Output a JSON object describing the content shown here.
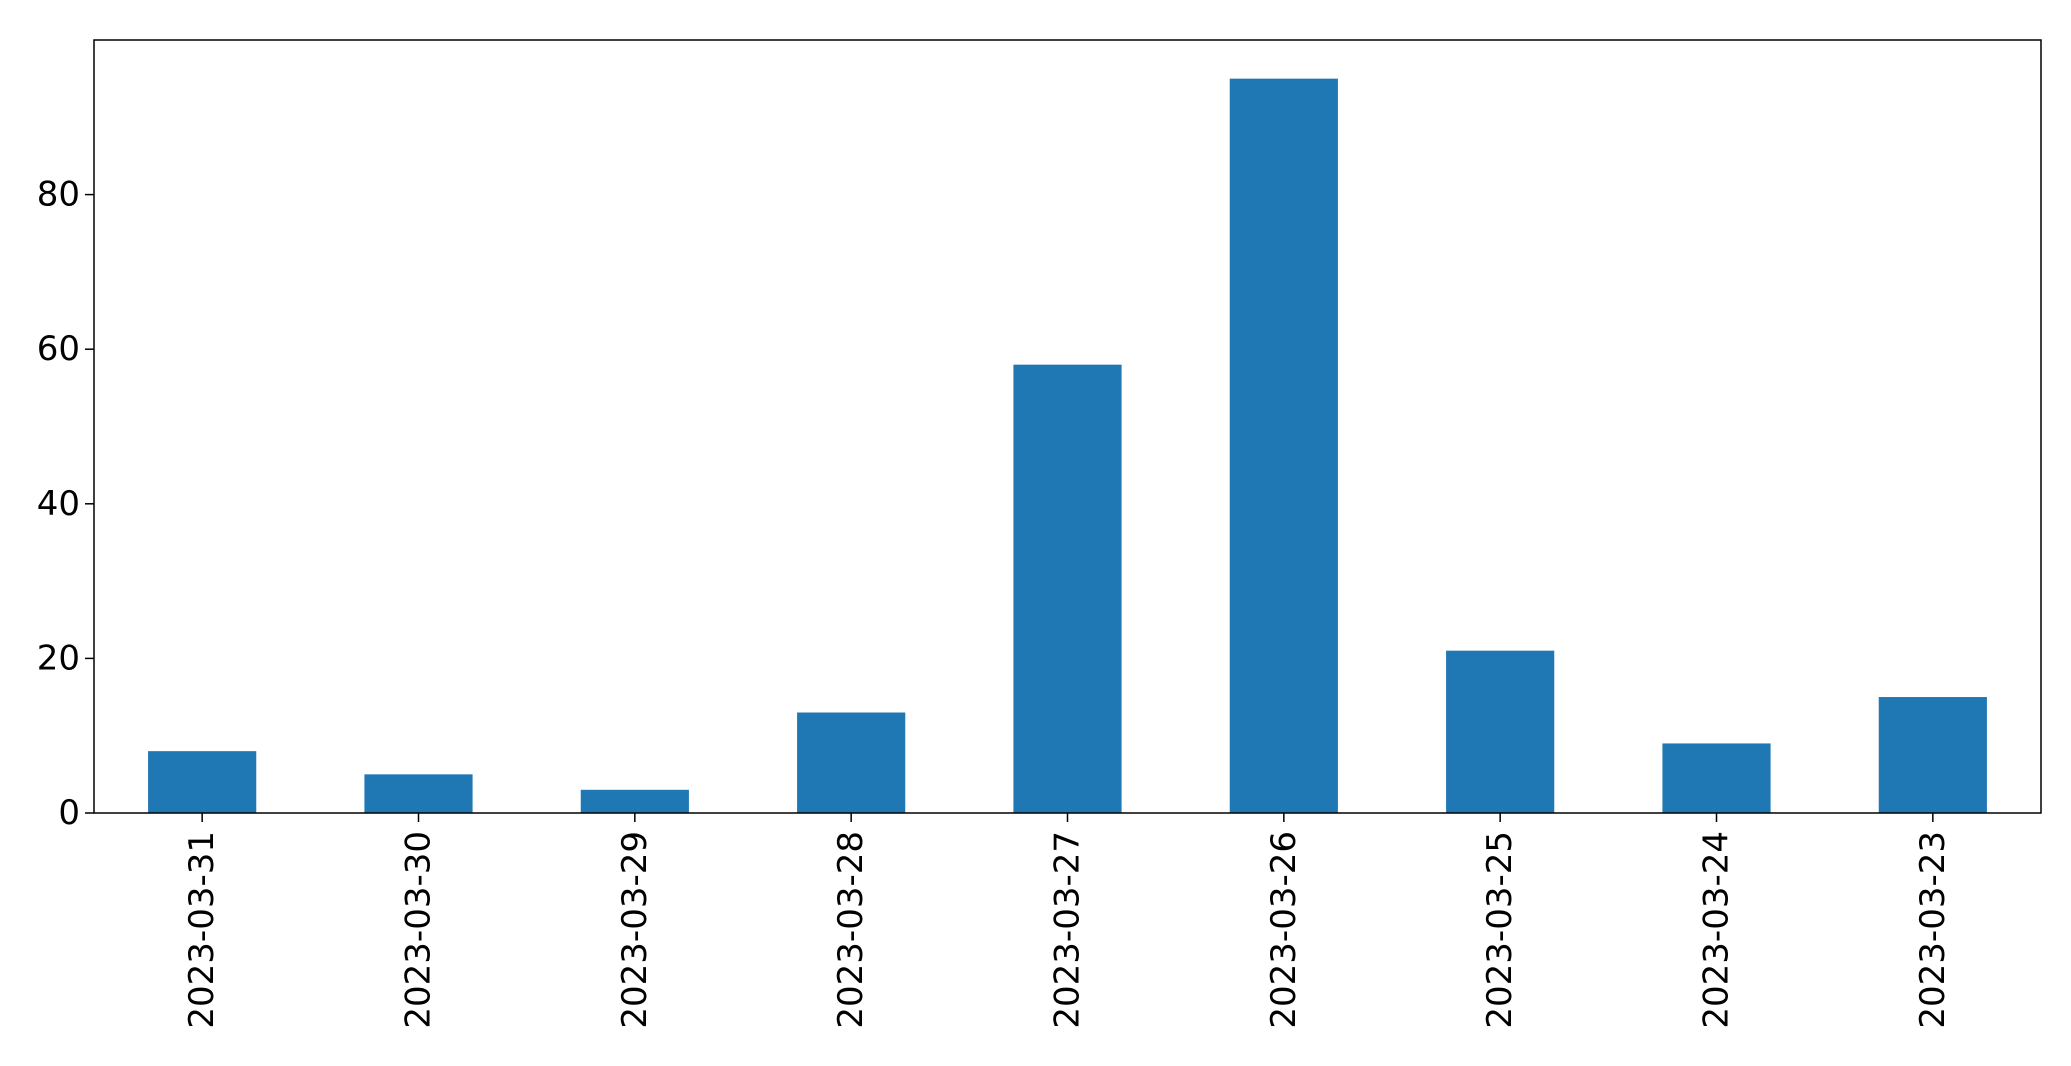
{
  "chart_data": {
    "type": "bar",
    "title": "",
    "xlabel": "",
    "ylabel": "",
    "categories": [
      "2023-03-31",
      "2023-03-30",
      "2023-03-29",
      "2023-03-28",
      "2023-03-27",
      "2023-03-26",
      "2023-03-25",
      "2023-03-24",
      "2023-03-23"
    ],
    "values": [
      8,
      5,
      3,
      13,
      58,
      95,
      21,
      9,
      15
    ],
    "ylim": [
      0,
      100
    ],
    "yticks": [
      0,
      20,
      40,
      60,
      80
    ],
    "grid": false,
    "legend": "none",
    "bar_color": "#1f77b4"
  }
}
